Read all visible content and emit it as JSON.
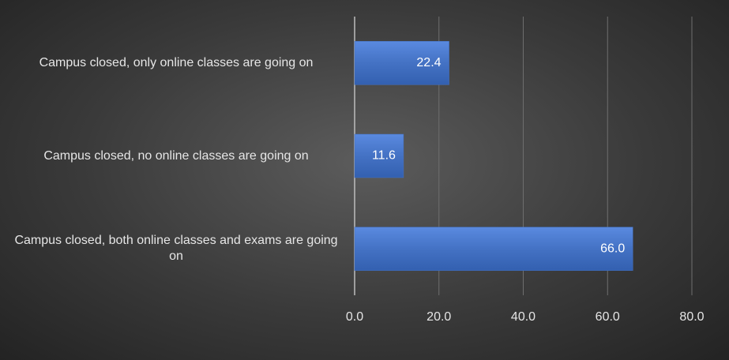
{
  "chart_data": {
    "type": "bar",
    "orientation": "horizontal",
    "categories": [
      "Campus closed, only online classes are going on",
      "Campus closed, no online classes are going on",
      "Campus closed, both online classes and exams are going on"
    ],
    "values": [
      22.4,
      11.6,
      66.0
    ],
    "value_labels": [
      "22.4",
      "11.6",
      "66.0"
    ],
    "color": "#4472c4",
    "xlim": [
      0,
      80
    ],
    "xticks": [
      {
        "value": 0,
        "label": "0.0"
      },
      {
        "value": 20,
        "label": "20.0"
      },
      {
        "value": 40,
        "label": "40.0"
      },
      {
        "value": 60,
        "label": "60.0"
      },
      {
        "value": 80,
        "label": "80.0"
      }
    ],
    "grid": true
  }
}
